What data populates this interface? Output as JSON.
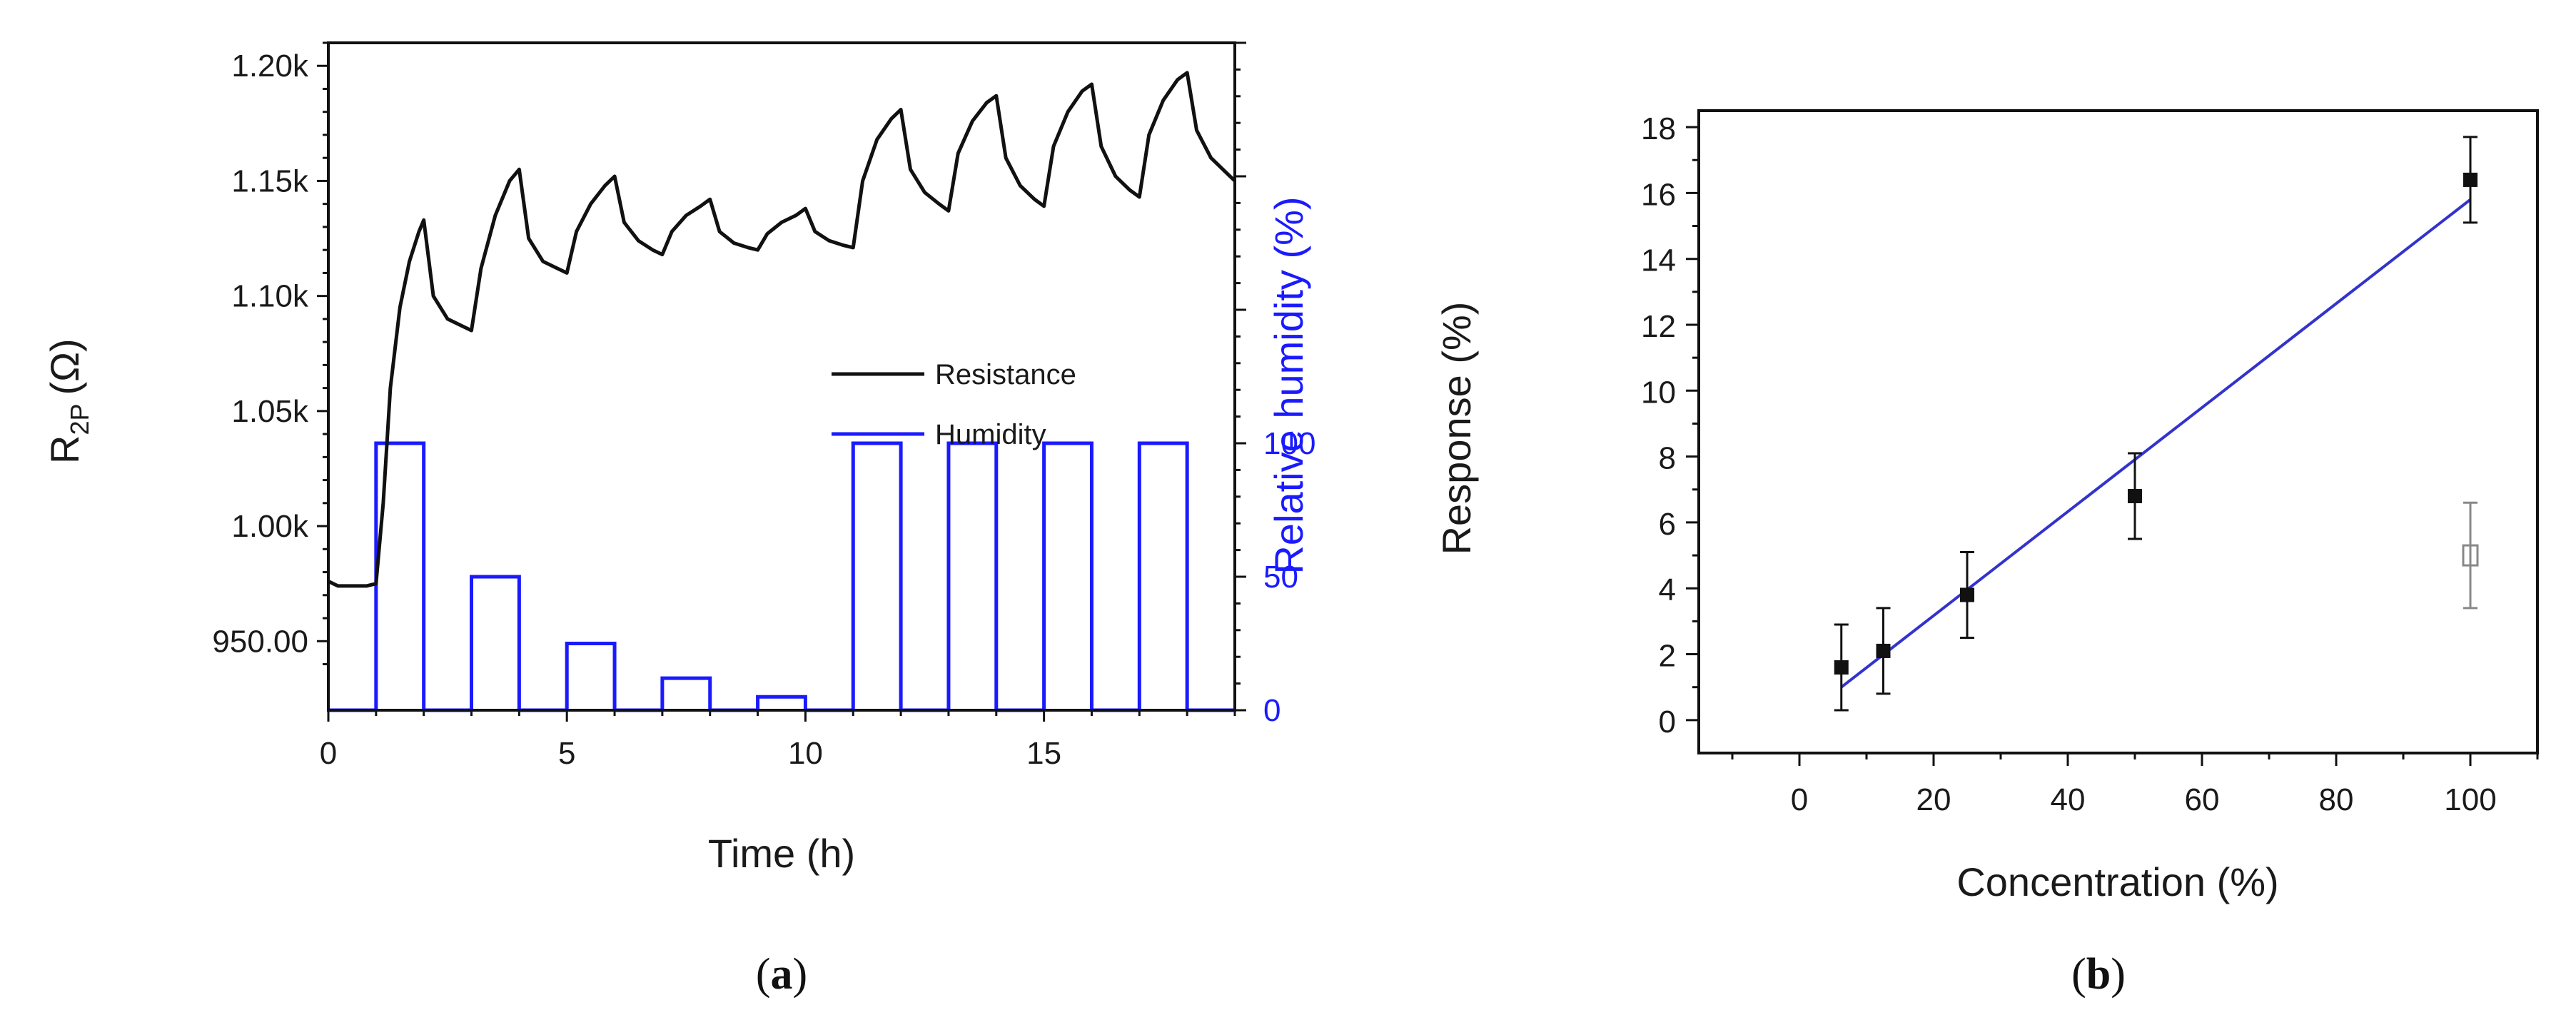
{
  "chart_data": [
    {
      "type": "line",
      "panel_label": "a",
      "xlabel": "Time (h)",
      "ylabel_main": "R",
      "ylabel_sub": "2P",
      "ylabel_unit": "(Ω)",
      "ylabel_right": "Relative humidity (%)",
      "xlim": [
        0,
        19
      ],
      "ylim": [
        920,
        1210
      ],
      "xticks": [
        0,
        5,
        10,
        15
      ],
      "yticks": [
        950,
        1000,
        1050,
        1100,
        1150,
        1200
      ],
      "ytick_labels": [
        "950.00",
        "1.00k",
        "1.05k",
        "1.10k",
        "1.15k",
        "1.20k"
      ],
      "y2lim": [
        0,
        250
      ],
      "y2ticks": [
        0,
        50,
        100
      ],
      "legend": [
        {
          "label": "Resistance",
          "color": "#111111"
        },
        {
          "label": "Humidity",
          "color": "#1a1aff"
        }
      ],
      "series": [
        {
          "name": "Resistance",
          "axis": "left",
          "color": "#111111",
          "x": [
            0,
            0.2,
            0.5,
            0.8,
            1.0,
            1.15,
            1.3,
            1.5,
            1.7,
            1.9,
            2.0,
            2.2,
            2.5,
            2.8,
            3.0,
            3.2,
            3.5,
            3.8,
            4.0,
            4.2,
            4.5,
            4.8,
            5.0,
            5.2,
            5.5,
            5.8,
            6.0,
            6.2,
            6.5,
            6.8,
            7.0,
            7.2,
            7.5,
            7.8,
            8.0,
            8.2,
            8.5,
            8.8,
            9.0,
            9.2,
            9.5,
            9.8,
            10.0,
            10.2,
            10.5,
            10.8,
            11.0,
            11.2,
            11.5,
            11.8,
            12.0,
            12.2,
            12.5,
            12.8,
            13.0,
            13.2,
            13.5,
            13.8,
            14.0,
            14.2,
            14.5,
            14.8,
            15.0,
            15.2,
            15.5,
            15.8,
            16.0,
            16.2,
            16.5,
            16.8,
            17.0,
            17.2,
            17.5,
            17.8,
            18.0,
            18.2,
            18.5,
            18.8,
            19.0
          ],
          "y": [
            976,
            974,
            974,
            974,
            975,
            1010,
            1060,
            1095,
            1115,
            1128,
            1133,
            1100,
            1090,
            1087,
            1085,
            1112,
            1135,
            1150,
            1155,
            1125,
            1115,
            1112,
            1110,
            1128,
            1140,
            1148,
            1152,
            1132,
            1124,
            1120,
            1118,
            1128,
            1135,
            1139,
            1142,
            1128,
            1123,
            1121,
            1120,
            1127,
            1132,
            1135,
            1138,
            1128,
            1124,
            1122,
            1121,
            1150,
            1168,
            1177,
            1181,
            1155,
            1145,
            1140,
            1137,
            1162,
            1176,
            1184,
            1187,
            1160,
            1148,
            1142,
            1139,
            1165,
            1180,
            1189,
            1192,
            1165,
            1152,
            1146,
            1143,
            1170,
            1185,
            1194,
            1197,
            1172,
            1160,
            1154,
            1150
          ]
        },
        {
          "name": "Humidity",
          "axis": "right",
          "color": "#1a1aff",
          "pulses": [
            {
              "start": 1,
              "end": 2,
              "value": 100
            },
            {
              "start": 3,
              "end": 4,
              "value": 50
            },
            {
              "start": 5,
              "end": 6,
              "value": 25
            },
            {
              "start": 7,
              "end": 8,
              "value": 12
            },
            {
              "start": 9,
              "end": 10,
              "value": 5
            },
            {
              "start": 11,
              "end": 12,
              "value": 100
            },
            {
              "start": 13,
              "end": 14,
              "value": 100
            },
            {
              "start": 15,
              "end": 16,
              "value": 100
            },
            {
              "start": 17,
              "end": 18,
              "value": 100
            }
          ]
        }
      ]
    },
    {
      "type": "scatter",
      "panel_label": "b",
      "xlabel": "Concentration (%)",
      "ylabel": "Response (%)",
      "xlim": [
        -15,
        110
      ],
      "ylim": [
        -1,
        18.5
      ],
      "xticks": [
        0,
        20,
        40,
        60,
        80,
        100
      ],
      "yticks": [
        0,
        2,
        4,
        6,
        8,
        10,
        12,
        14,
        16,
        18
      ],
      "series": [
        {
          "name": "Response",
          "color": "#111111",
          "marker": "filled-square",
          "x": [
            6.25,
            12.5,
            25,
            50,
            100
          ],
          "y": [
            1.6,
            2.1,
            3.8,
            6.8,
            16.4
          ],
          "yerr": [
            1.3,
            1.3,
            1.3,
            1.3,
            1.3
          ]
        },
        {
          "name": "Response (open)",
          "color": "#888888",
          "marker": "open-square",
          "x": [
            100
          ],
          "y": [
            5.0
          ],
          "yerr": [
            1.6
          ]
        }
      ],
      "fit_line": {
        "x": [
          6.25,
          100
        ],
        "y": [
          1.0,
          15.8
        ],
        "color": "#3333cc"
      }
    }
  ]
}
